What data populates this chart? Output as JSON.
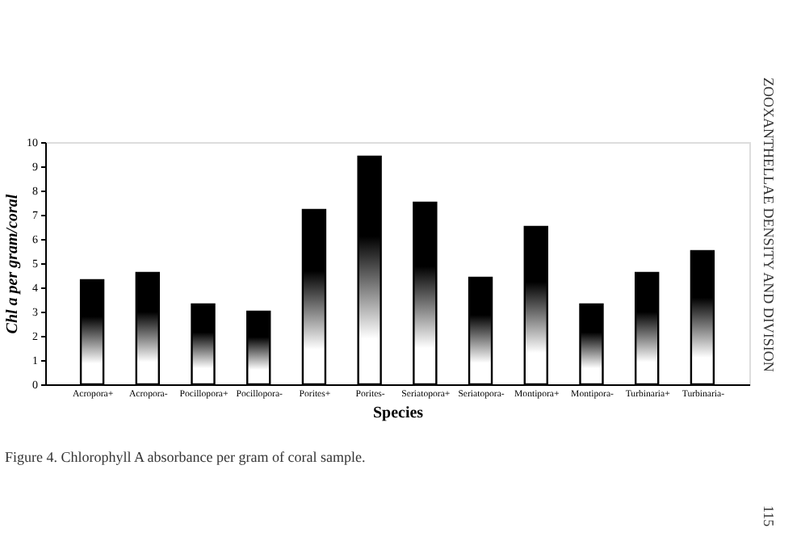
{
  "chart_data": {
    "type": "bar",
    "xlabel": "Species",
    "ylabel": "Chl a per gram/coral",
    "categories": [
      "Acropora+",
      "Acropora-",
      "Pocillopora+",
      "Pocillopora-",
      "Porites+",
      "Porites-",
      "Seriatopora+",
      "Seriatopora-",
      "Montipora+",
      "Montipora-",
      "Turbinaria+",
      "Turbinaria-"
    ],
    "values": [
      4.3,
      4.6,
      3.3,
      3.0,
      7.2,
      9.4,
      7.5,
      4.4,
      6.5,
      3.3,
      4.6,
      5.5
    ],
    "color": "#000000",
    "ylim": [
      0,
      10
    ],
    "yticks": [
      0,
      1,
      2,
      3,
      4,
      5,
      6,
      7,
      8,
      9,
      10
    ],
    "grid": false,
    "annotations": [
      "Figure 4.  Chlorophyll A absorbance per gram of coral sample.",
      "ZOOXANTHELLAE DENSITY AND DIVISION",
      "115"
    ]
  }
}
